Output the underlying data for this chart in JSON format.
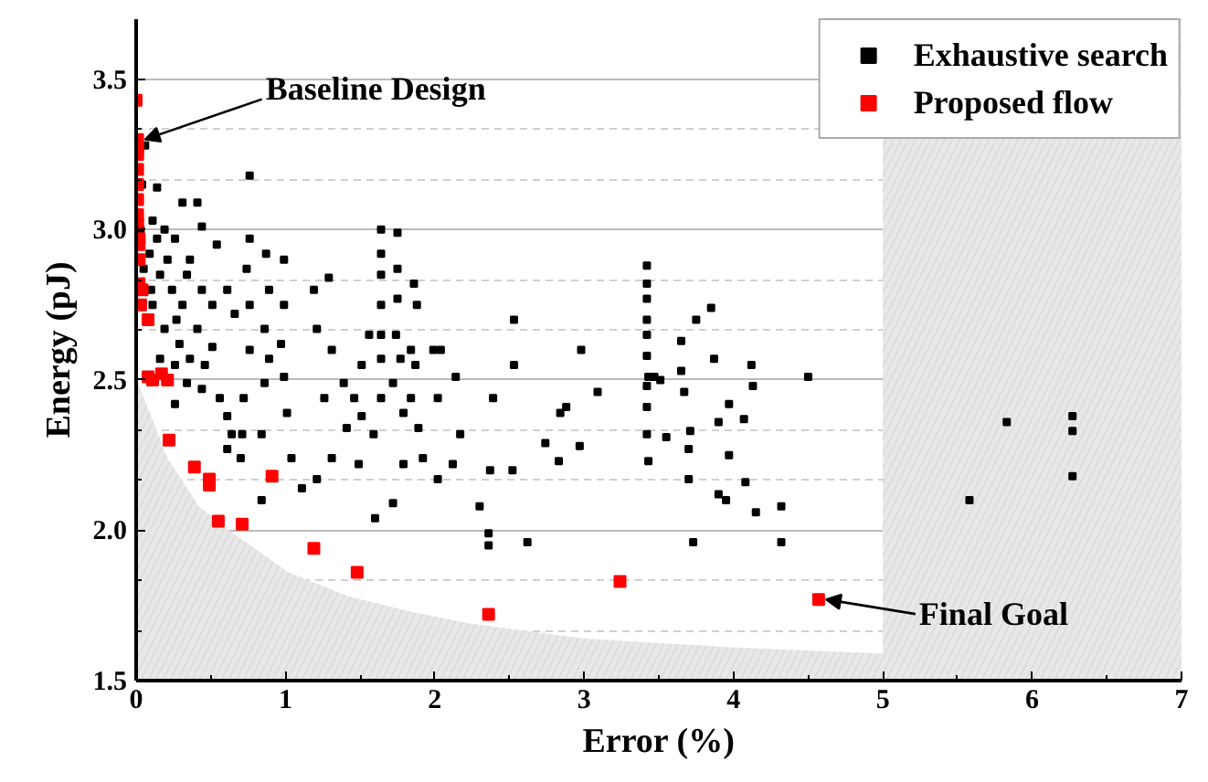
{
  "chart_data": {
    "type": "scatter",
    "xlabel": "Error (%)",
    "ylabel": "Energy (pJ)",
    "xlim": [
      0,
      7
    ],
    "ylim": [
      1.5,
      3.7
    ],
    "xticks": [
      0,
      1,
      2,
      3,
      4,
      5,
      6,
      7
    ],
    "yticks": [
      1.5,
      {
        "value": 2,
        "label": "2.0"
      },
      2.5,
      {
        "value": 3,
        "label": "3.0"
      },
      3.5
    ],
    "grid": "y",
    "legend": "top right",
    "bands": [
      {
        "axis": "x",
        "from": 5,
        "to": 7,
        "color": "#e8e8e8"
      }
    ],
    "annotations": [
      {
        "text": "Baseline Design",
        "x": 0.01,
        "y": 3.3
      },
      {
        "text": "Final Goal",
        "x": 4.57,
        "y": 1.77
      }
    ],
    "series": [
      {
        "type": "area",
        "color": "#e8e8e8",
        "x": [
          0,
          0.02,
          0.21,
          0.42,
          0.62,
          1.02,
          1.42,
          1.83,
          2.23,
          3.0,
          4.0,
          5.0
        ],
        "values": [
          2.5,
          2.48,
          2.24,
          2.08,
          2.0,
          1.86,
          1.78,
          1.73,
          1.69,
          1.64,
          1.61,
          1.59
        ]
      },
      {
        "name": "Exhaustive search",
        "color": "#000000",
        "marker": "square",
        "x": [
          0.06,
          0.04,
          0.14,
          0.31,
          0.41,
          0.76,
          0.11,
          0.19,
          0.26,
          0.09,
          0.44,
          0.54,
          0.36,
          0.16,
          0.24,
          0.31,
          0.11,
          0.19,
          0.29,
          0.41,
          0.51,
          0.36,
          0.26,
          0.16,
          0.34,
          0.44,
          0.26,
          0.61,
          0.66,
          0.56,
          0.61,
          0.64,
          0.61,
          0.76,
          0.74,
          0.76,
          0.76,
          0.72,
          0.71,
          0.7,
          0.87,
          0.89,
          0.86,
          0.89,
          0.86,
          0.84,
          0.84,
          0.99,
          0.99,
          0.97,
          0.99,
          1.01,
          1.04,
          1.11,
          1.19,
          1.29,
          1.21,
          1.31,
          1.26,
          1.39,
          1.46,
          1.41,
          1.31,
          1.21,
          1.49,
          1.56,
          1.51,
          1.51,
          1.64,
          1.64,
          1.64,
          1.64,
          1.64,
          1.64,
          1.64,
          1.59,
          1.6,
          1.75,
          1.75,
          1.75,
          1.74,
          1.77,
          1.72,
          1.79,
          1.72,
          1.86,
          1.88,
          1.84,
          1.87,
          1.84,
          1.89,
          1.92,
          1.79,
          1.99,
          2.04,
          2.02,
          2.14,
          2.17,
          2.12,
          2.02,
          2.3,
          2.36,
          2.36,
          2.37,
          2.39,
          2.53,
          2.53,
          2.52,
          2.62,
          2.74,
          2.84,
          2.88,
          2.83,
          2.98,
          2.97,
          3.09,
          3.42,
          3.42,
          3.42,
          3.42,
          3.42,
          3.42,
          3.43,
          3.42,
          3.42,
          3.42,
          3.43,
          3.47,
          3.51,
          3.55,
          3.65,
          3.65,
          3.67,
          3.71,
          3.7,
          3.7,
          3.73,
          3.75,
          3.85,
          3.87,
          3.9,
          3.9,
          3.95,
          3.97,
          3.97,
          4.07,
          4.08,
          4.12,
          4.13,
          4.15,
          4.32,
          4.32,
          4.5,
          5.58,
          5.83,
          6.27,
          6.27,
          6.27,
          0.03,
          0.05,
          0.1,
          0.14,
          0.21,
          0.27,
          0.34,
          0.44,
          0.51,
          0.46
        ],
        "values": [
          3.28,
          3.15,
          3.14,
          3.09,
          3.09,
          3.18,
          3.03,
          3.0,
          2.97,
          2.92,
          3.01,
          2.95,
          2.9,
          2.85,
          2.8,
          2.75,
          2.75,
          2.67,
          2.62,
          2.67,
          2.61,
          2.57,
          2.55,
          2.57,
          2.49,
          2.47,
          2.42,
          2.8,
          2.72,
          2.44,
          2.38,
          2.32,
          2.27,
          2.97,
          2.87,
          2.75,
          2.6,
          2.44,
          2.32,
          2.24,
          2.92,
          2.8,
          2.67,
          2.57,
          2.49,
          2.32,
          2.1,
          2.9,
          2.75,
          2.62,
          2.51,
          2.39,
          2.24,
          2.14,
          2.8,
          2.84,
          2.67,
          2.6,
          2.44,
          2.49,
          2.44,
          2.34,
          2.24,
          2.17,
          2.22,
          2.65,
          2.55,
          2.38,
          3.0,
          2.92,
          2.85,
          2.75,
          2.65,
          2.57,
          2.44,
          2.32,
          2.04,
          2.99,
          2.87,
          2.77,
          2.65,
          2.57,
          2.49,
          2.39,
          2.09,
          2.82,
          2.75,
          2.6,
          2.55,
          2.44,
          2.34,
          2.24,
          2.22,
          2.6,
          2.6,
          2.44,
          2.51,
          2.32,
          2.22,
          2.17,
          2.08,
          1.99,
          1.95,
          2.2,
          2.44,
          2.7,
          2.55,
          2.2,
          1.96,
          2.29,
          2.39,
          2.41,
          2.23,
          2.6,
          2.28,
          2.46,
          2.88,
          2.82,
          2.77,
          2.7,
          2.65,
          2.58,
          2.51,
          2.48,
          2.41,
          2.32,
          2.23,
          2.51,
          2.5,
          2.31,
          2.63,
          2.53,
          2.46,
          2.33,
          2.27,
          2.17,
          1.96,
          2.7,
          2.74,
          2.57,
          2.36,
          2.12,
          2.1,
          2.42,
          2.25,
          2.37,
          2.16,
          2.55,
          2.48,
          2.06,
          2.08,
          1.96,
          2.51,
          2.1,
          2.36,
          2.38,
          2.33,
          2.18,
          3.0,
          2.87,
          2.8,
          2.97,
          2.9,
          2.7,
          2.85,
          2.8,
          2.75,
          2.55
        ]
      },
      {
        "name": "Proposed flow",
        "color": "#ff0000",
        "marker": "square",
        "x": [
          0.0,
          0.01,
          0.01,
          0.01,
          0.01,
          0.01,
          0.01,
          0.01,
          0.01,
          0.02,
          0.02,
          0.02,
          0.02,
          0.04,
          0.03,
          0.08,
          0.08,
          0.11,
          0.17,
          0.21,
          0.22,
          0.39,
          0.49,
          0.49,
          0.55,
          0.71,
          0.91,
          1.19,
          1.48,
          2.36,
          3.24,
          4.57
        ],
        "values": [
          3.43,
          3.3,
          3.27,
          3.25,
          3.2,
          3.15,
          3.1,
          3.05,
          3.02,
          2.97,
          2.95,
          2.9,
          2.82,
          2.8,
          2.75,
          2.7,
          2.51,
          2.5,
          2.52,
          2.5,
          2.3,
          2.21,
          2.17,
          2.15,
          2.03,
          2.02,
          2.18,
          1.94,
          1.86,
          1.72,
          1.83,
          1.77
        ]
      }
    ]
  }
}
